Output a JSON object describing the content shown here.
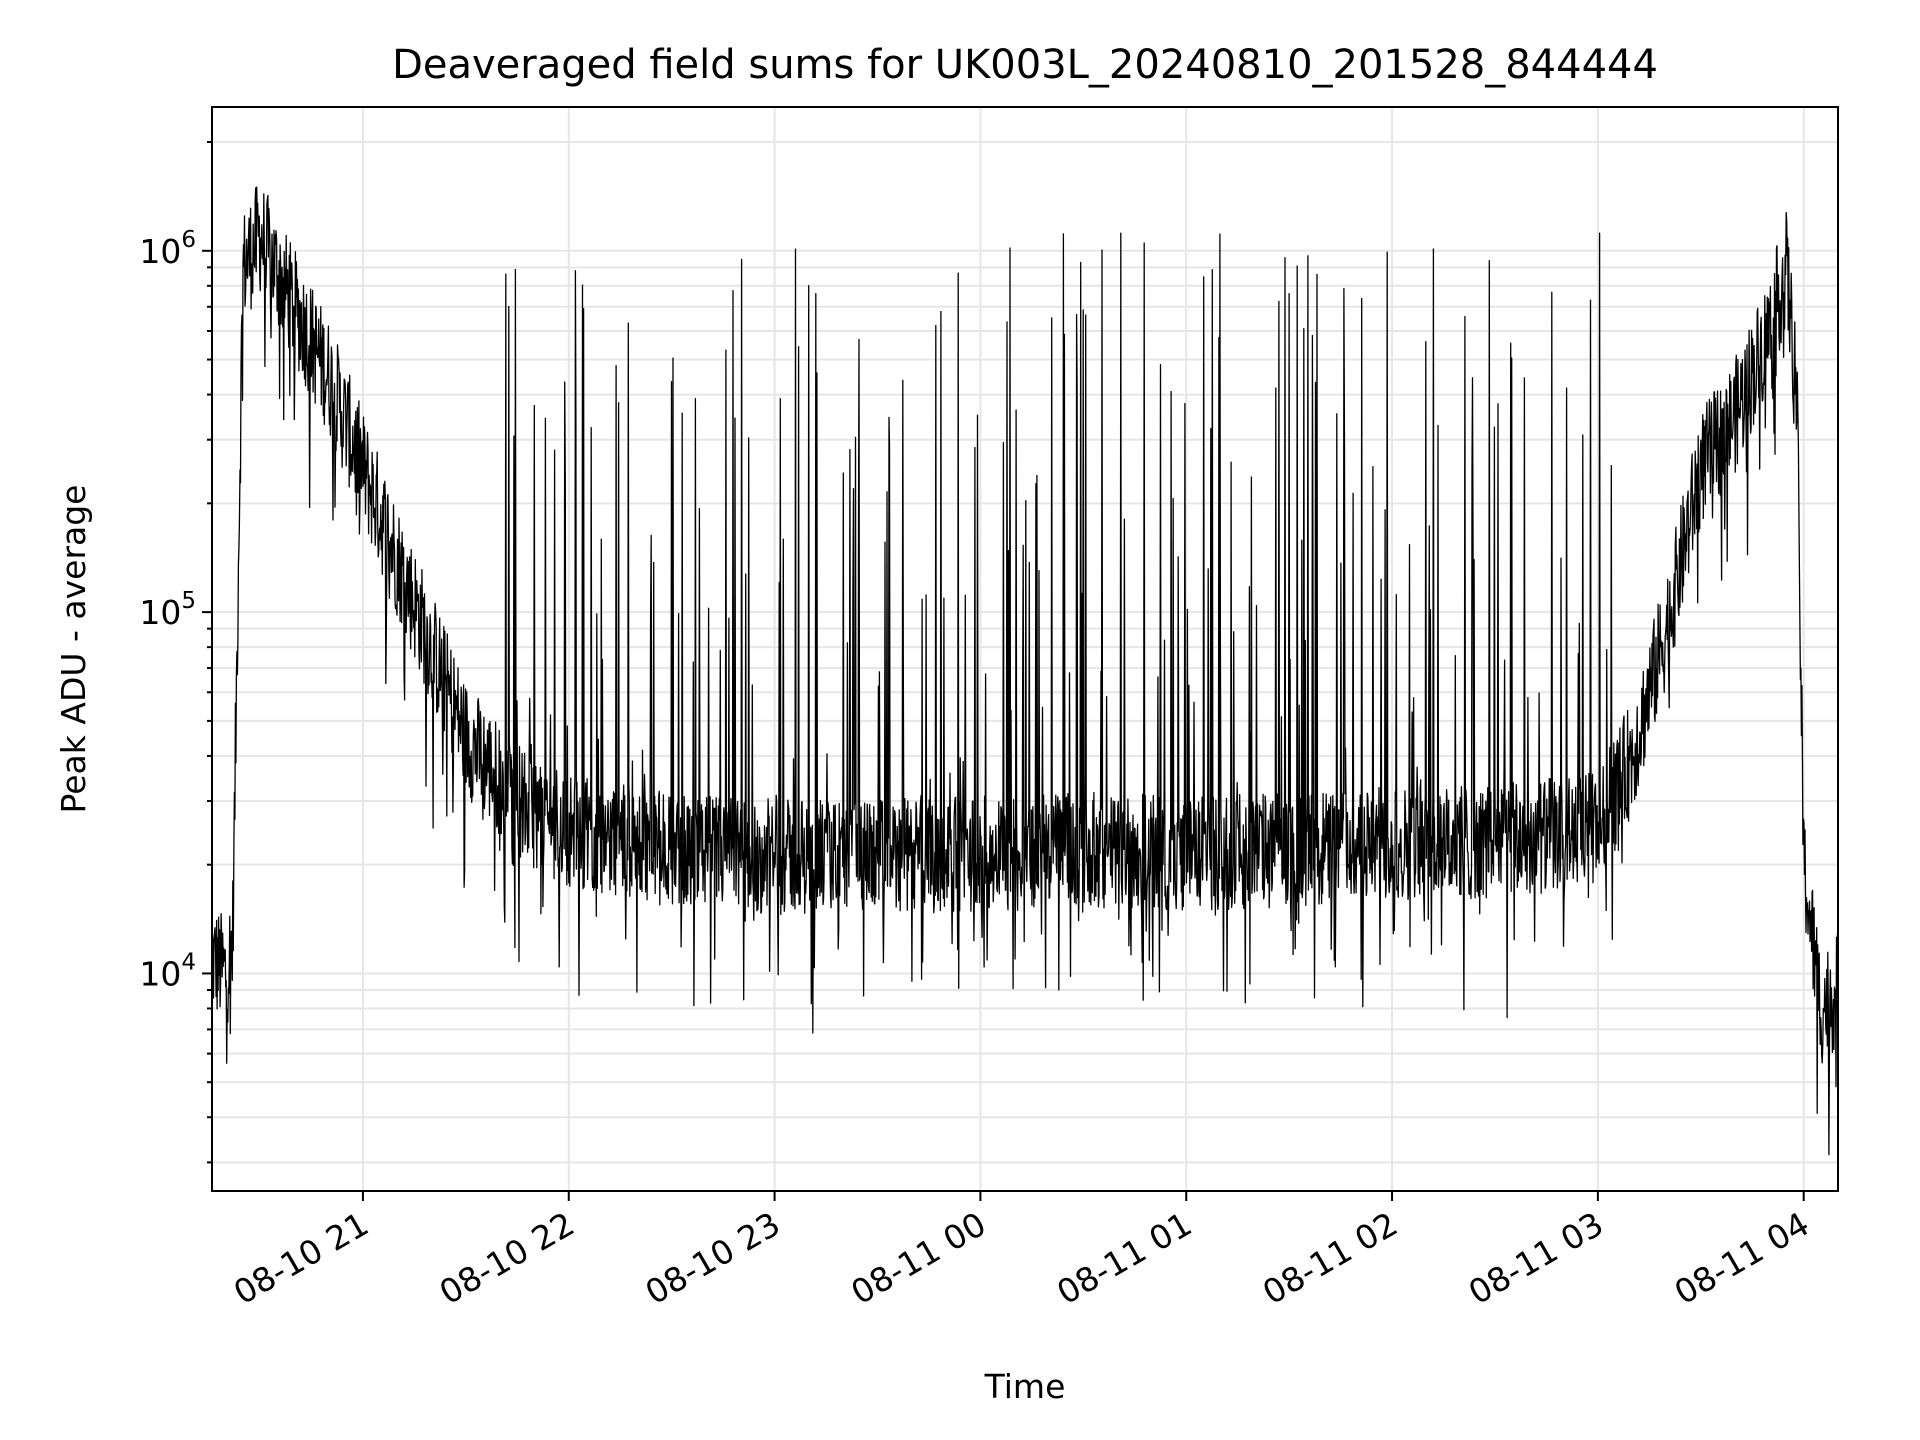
{
  "chart_data": {
    "type": "line",
    "title": "Deaveraged field sums for UK003L_20240810_201528_844444",
    "xlabel": "Time",
    "ylabel": "Peak ADU - average",
    "y_scale": "log",
    "ylim": [
      2500,
      2500000
    ],
    "xlim": [
      "2024-08-10 20:16",
      "2024-08-11 04:10"
    ],
    "x_ticks": [
      "08-10 21",
      "08-10 22",
      "08-10 23",
      "08-11 00",
      "08-11 01",
      "08-11 02",
      "08-11 03",
      "08-11 04"
    ],
    "y_ticks": [
      {
        "base": "10",
        "exp": "4",
        "value": 10000
      },
      {
        "base": "10",
        "exp": "5",
        "value": 100000
      },
      {
        "base": "10",
        "exp": "6",
        "value": 1000000
      }
    ],
    "grid": true,
    "line_color": "#000000",
    "grid_color": "#e6e6e6",
    "series": [
      {
        "envelope_x": [
          "2024-08-10 20:16",
          "2024-08-10 20:18",
          "2024-08-10 20:20",
          "2024-08-10 20:22",
          "2024-08-10 20:25",
          "2024-08-10 20:30",
          "2024-08-10 20:40",
          "2024-08-10 20:50",
          "2024-08-10 21:00",
          "2024-08-10 21:10",
          "2024-08-10 21:20",
          "2024-08-10 21:30",
          "2024-08-10 21:45",
          "2024-08-10 22:00",
          "2024-08-10 22:30",
          "2024-08-10 23:00",
          "2024-08-10 23:30",
          "2024-08-11 00:00",
          "2024-08-11 00:30",
          "2024-08-11 01:00",
          "2024-08-11 01:30",
          "2024-08-11 02:00",
          "2024-08-11 02:30",
          "2024-08-11 03:00",
          "2024-08-11 03:10",
          "2024-08-11 03:20",
          "2024-08-11 03:30",
          "2024-08-11 03:40",
          "2024-08-11 03:50",
          "2024-08-11 03:55",
          "2024-08-11 03:58",
          "2024-08-11 04:00",
          "2024-08-11 04:05",
          "2024-08-11 04:10"
        ],
        "envelope_y": [
          11000,
          10500,
          10000,
          12000,
          900000,
          1100000,
          700000,
          450000,
          250000,
          140000,
          80000,
          45000,
          30000,
          25000,
          22000,
          21000,
          21000,
          21500,
          22000,
          21500,
          22000,
          23000,
          23000,
          25000,
          40000,
          90000,
          250000,
          350000,
          600000,
          900000,
          400000,
          20000,
          8000,
          9000
        ]
      }
    ]
  }
}
